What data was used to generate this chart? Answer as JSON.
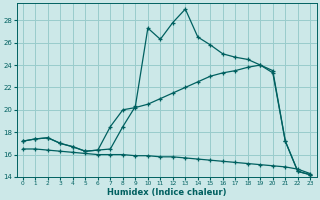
{
  "xlabel": "Humidex (Indice chaleur)",
  "bg_color": "#cce8e8",
  "grid_color": "#99cccc",
  "line_color": "#006060",
  "xlim": [
    -0.5,
    23.5
  ],
  "ylim": [
    14,
    29.5
  ],
  "yticks": [
    14,
    16,
    18,
    20,
    22,
    24,
    26,
    28
  ],
  "xticks": [
    0,
    1,
    2,
    3,
    4,
    5,
    6,
    7,
    8,
    9,
    10,
    11,
    12,
    13,
    14,
    15,
    16,
    17,
    18,
    19,
    20,
    21,
    22,
    23
  ],
  "series1_x": [
    0,
    1,
    2,
    3,
    4,
    5,
    6,
    7,
    8,
    9,
    10,
    11,
    12,
    13,
    14,
    15,
    16,
    17,
    18,
    19,
    20,
    21,
    22,
    23
  ],
  "series1_y": [
    17.2,
    17.4,
    17.5,
    17.0,
    16.7,
    16.3,
    16.4,
    16.5,
    18.5,
    20.3,
    27.3,
    26.3,
    27.8,
    29.0,
    26.5,
    25.8,
    25.0,
    24.7,
    24.5,
    24.0,
    23.3,
    17.2,
    14.5,
    14.2
  ],
  "series2_x": [
    0,
    1,
    2,
    3,
    4,
    5,
    6,
    7,
    8,
    9,
    10,
    11,
    12,
    13,
    14,
    15,
    16,
    17,
    18,
    19,
    20,
    21,
    22,
    23
  ],
  "series2_y": [
    17.2,
    17.4,
    17.5,
    17.0,
    16.7,
    16.3,
    16.4,
    18.5,
    20.0,
    20.2,
    20.5,
    21.0,
    21.5,
    22.0,
    22.5,
    23.0,
    23.3,
    23.5,
    23.8,
    24.0,
    23.5,
    17.2,
    14.5,
    14.2
  ],
  "series3_x": [
    0,
    1,
    2,
    3,
    4,
    5,
    6,
    7,
    8,
    9,
    10,
    11,
    12,
    13,
    14,
    15,
    16,
    17,
    18,
    19,
    20,
    21,
    22,
    23
  ],
  "series3_y": [
    16.5,
    16.5,
    16.4,
    16.3,
    16.2,
    16.1,
    16.0,
    16.0,
    16.0,
    15.9,
    15.9,
    15.8,
    15.8,
    15.7,
    15.6,
    15.5,
    15.4,
    15.3,
    15.2,
    15.1,
    15.0,
    14.9,
    14.7,
    14.3
  ]
}
